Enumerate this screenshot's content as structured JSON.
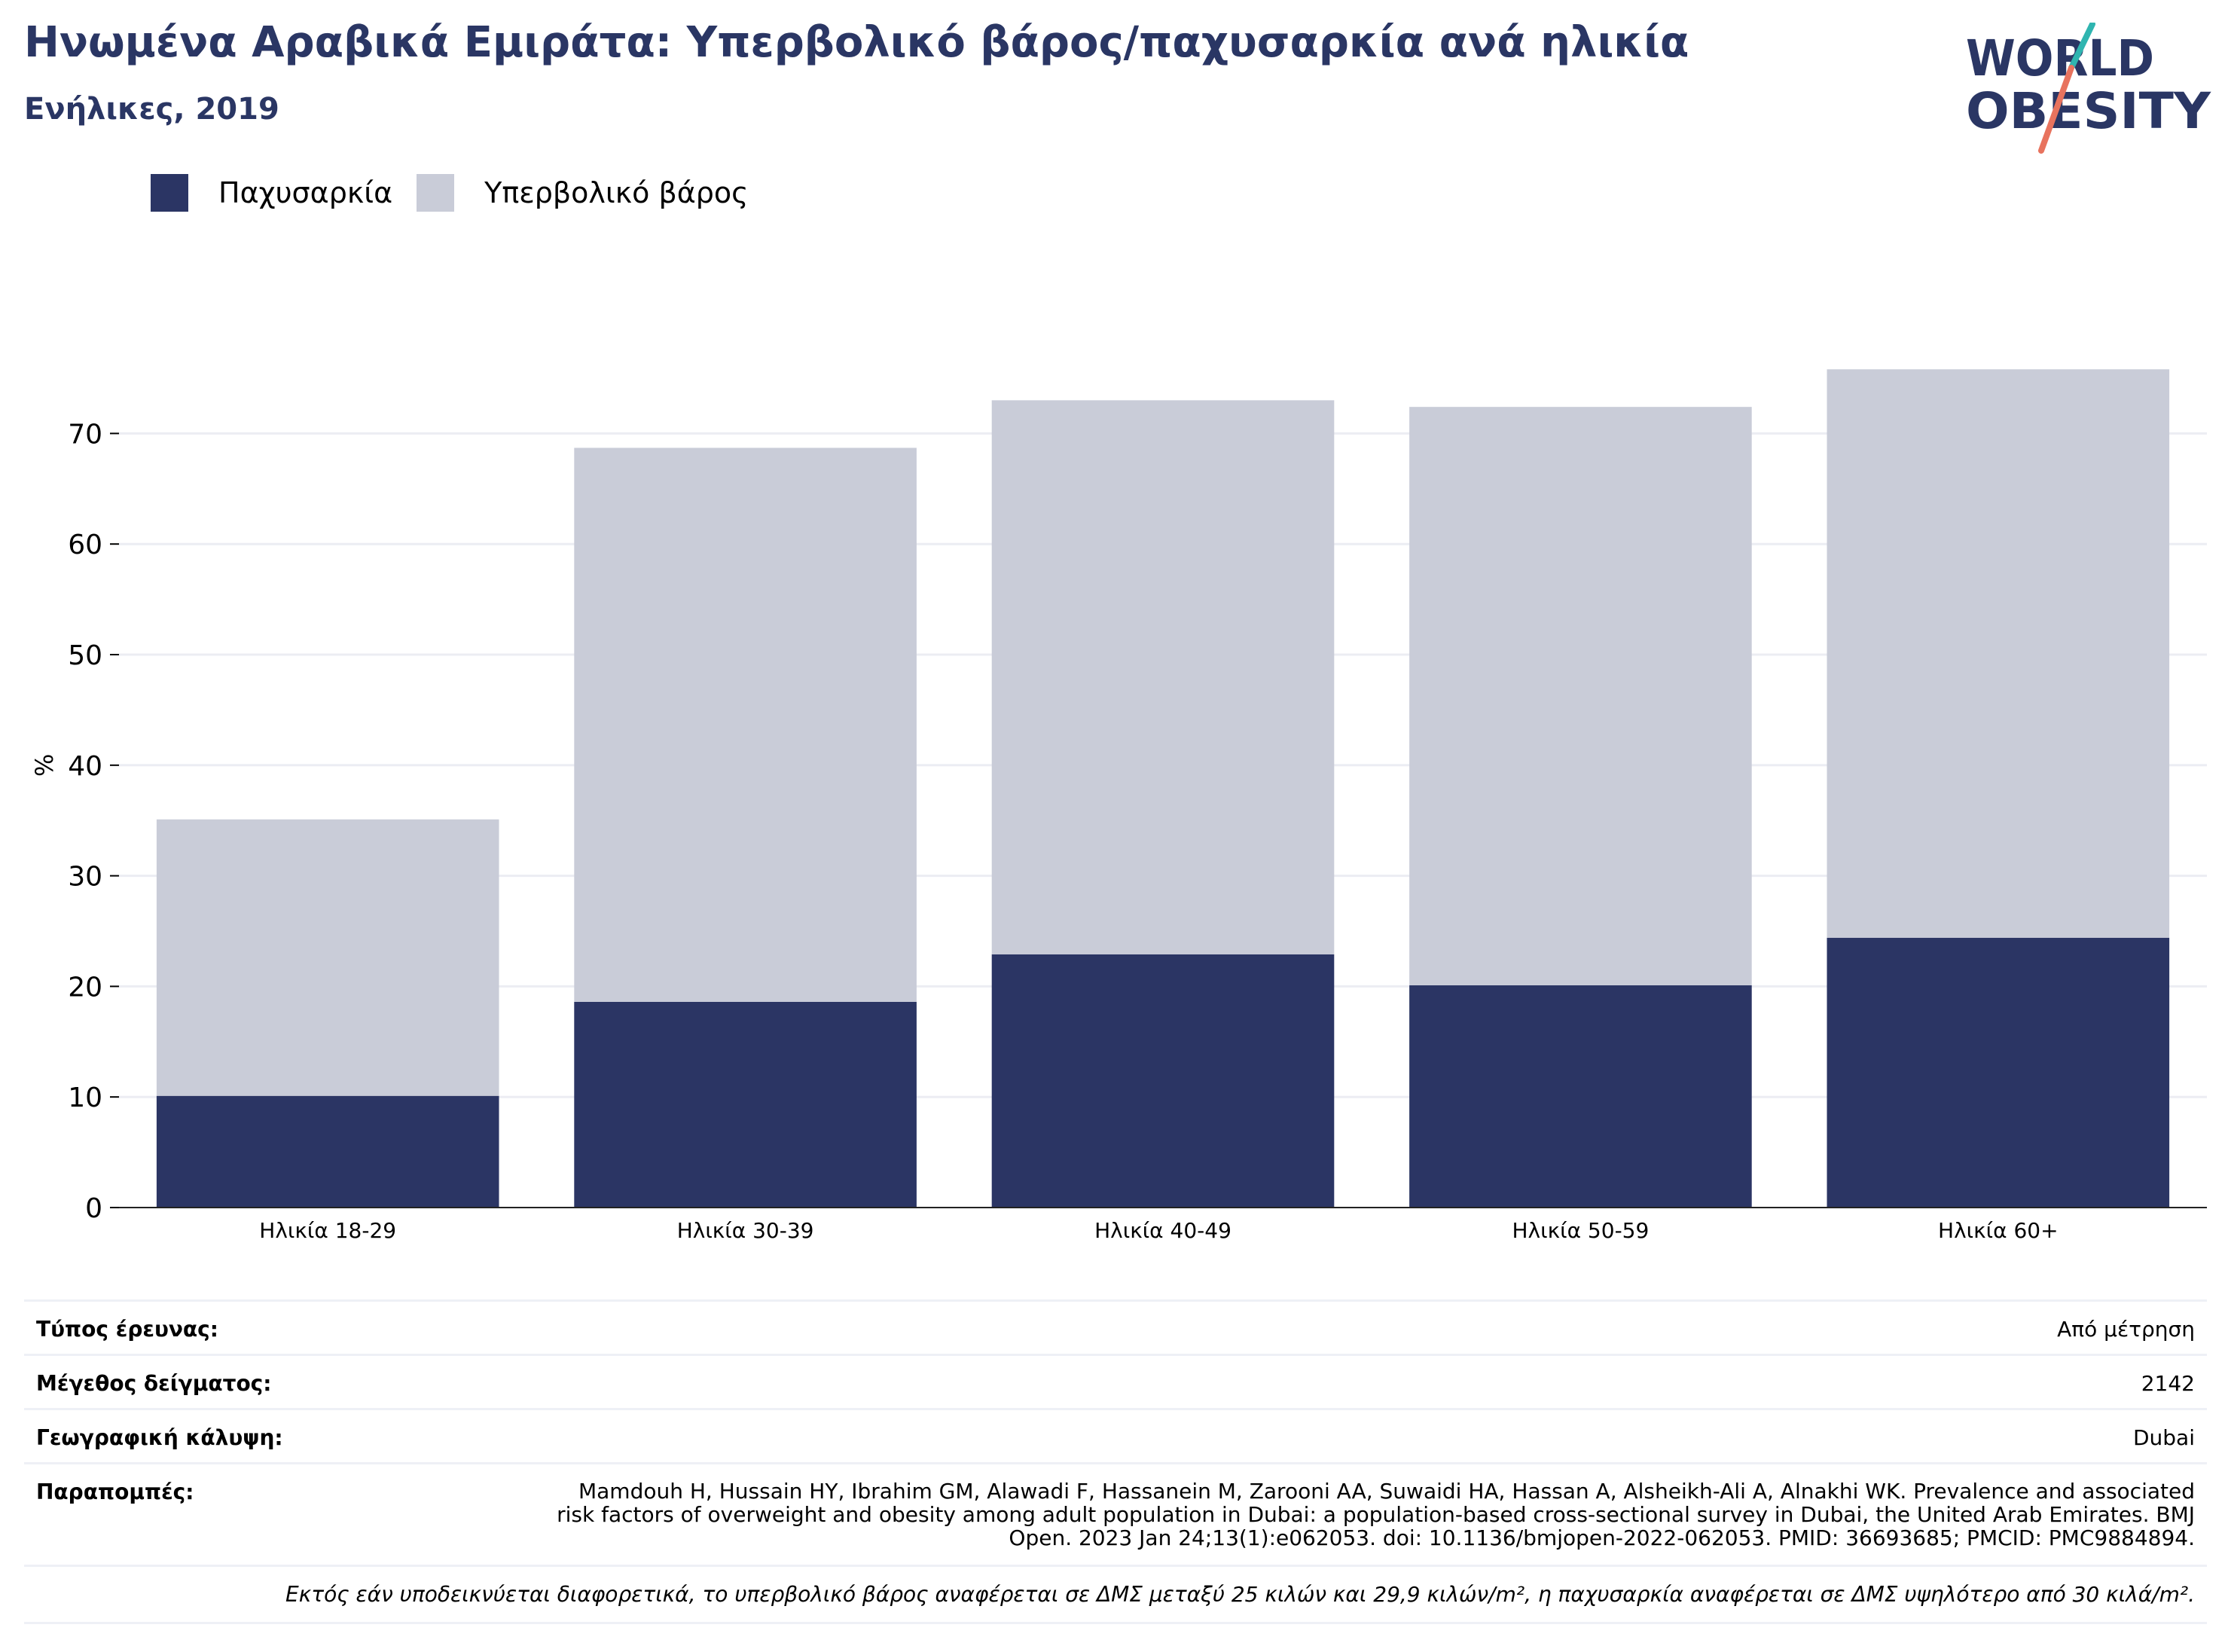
{
  "title": "Ηνωμένα Αραβικά Εμιράτα: Υπερβολικό βάρος/παχυσαρκία ανά ηλικία",
  "subtitle": "Ενήλικες, 2019",
  "logo": {
    "line1": "WORLD",
    "line2": "OBESITY"
  },
  "colors": {
    "title": "#2a3664",
    "obesity": "#2b3564",
    "overweight": "#c9ccd8",
    "logo_slash_teal": "#2fb5b0",
    "logo_slash_coral": "#e8735e"
  },
  "legend": [
    {
      "label": "Παχυσαρκία",
      "color": "#2b3564"
    },
    {
      "label": "Υπερβολικό βάρος",
      "color": "#c9ccd8"
    }
  ],
  "chart_data": {
    "type": "bar",
    "stacked": true,
    "categories": [
      "Ηλικία 18-29",
      "Ηλικία 30-39",
      "Ηλικία 40-49",
      "Ηλικία 50-59",
      "Ηλικία 60+"
    ],
    "series": [
      {
        "name": "Παχυσαρκία",
        "values": [
          10.1,
          18.6,
          22.9,
          20.1,
          24.4
        ],
        "color": "#2b3564"
      },
      {
        "name": "Υπερβολικό βάρος",
        "values": [
          25.0,
          50.1,
          50.1,
          52.3,
          51.4
        ],
        "color": "#c9ccd8"
      }
    ],
    "ylabel": "%",
    "xlabel": "",
    "ylim": [
      0,
      80
    ],
    "yticks": [
      0,
      10,
      20,
      30,
      40,
      50,
      60,
      70
    ],
    "grid": true,
    "legend_position": "top-left"
  },
  "meta": {
    "survey_type": {
      "label": "Τύπος έρευνας:",
      "value": "Από μέτρηση"
    },
    "sample_size": {
      "label": "Μέγεθος δείγματος:",
      "value": "2142"
    },
    "geo_coverage": {
      "label": "Γεωγραφική κάλυψη:",
      "value": "Dubai"
    },
    "references": {
      "label": "Παραπομπές:",
      "value": "Mamdouh H, Hussain HY, Ibrahim GM, Alawadi F, Hassanein M, Zarooni AA, Suwaidi HA, Hassan A, Alsheikh-Ali A, Alnakhi WK. Prevalence and associated risk factors of overweight and obesity among adult population in Dubai: a population-based cross-sectional survey in Dubai, the United Arab Emirates. BMJ Open. 2023 Jan 24;13(1):e062053. doi: 10.1136/bmjopen-2022-062053. PMID: 36693685; PMCID: PMC9884894."
    },
    "note": "Εκτός εάν υποδεικνύεται διαφορετικά, το υπερβολικό βάρος αναφέρεται σε ΔΜΣ μεταξύ 25 κιλών και 29,9 κιλών/m², η παχυσαρκία αναφέρεται σε ΔΜΣ υψηλότερο από 30 κιλά/m²."
  }
}
